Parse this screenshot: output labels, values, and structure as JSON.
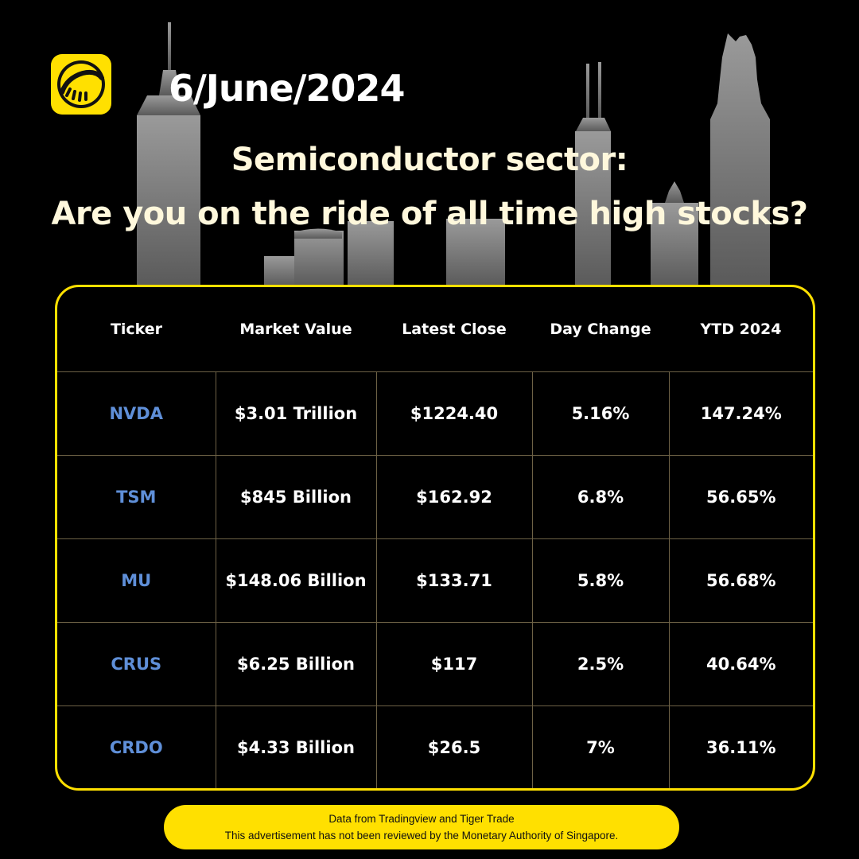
{
  "date": "6/June/2024",
  "headline": {
    "line1": "Semiconductor sector:",
    "line2": "Are you on the ride of all time high stocks?"
  },
  "colors": {
    "brand_yellow": "#ffe000",
    "ticker_blue": "#5f8fd8",
    "background": "#000000",
    "skyline_gray": "#7a7a7a"
  },
  "logo": {
    "icon": "tiger-logo-icon"
  },
  "table": {
    "headers": [
      "Ticker",
      "Market Value",
      "Latest Close",
      "Day Change",
      "YTD 2024"
    ],
    "rows": [
      [
        "NVDA",
        "$3.01 Trillion",
        "$1224.40",
        "5.16%",
        "147.24%"
      ],
      [
        "TSM",
        "$845 Billion",
        "$162.92",
        "6.8%",
        "56.65%"
      ],
      [
        "MU",
        "$148.06 Billion",
        "$133.71",
        "5.8%",
        "56.68%"
      ],
      [
        "CRUS",
        "$6.25 Billion",
        "$117",
        "2.5%",
        "40.64%"
      ],
      [
        "CRDO",
        "$4.33 Billion",
        "$26.5",
        "7%",
        "36.11%"
      ]
    ]
  },
  "footer": {
    "line1": "Data from Tradingview and Tiger Trade",
    "line2": "This advertisement has not been reviewed by the Monetary Authority of Singapore."
  }
}
